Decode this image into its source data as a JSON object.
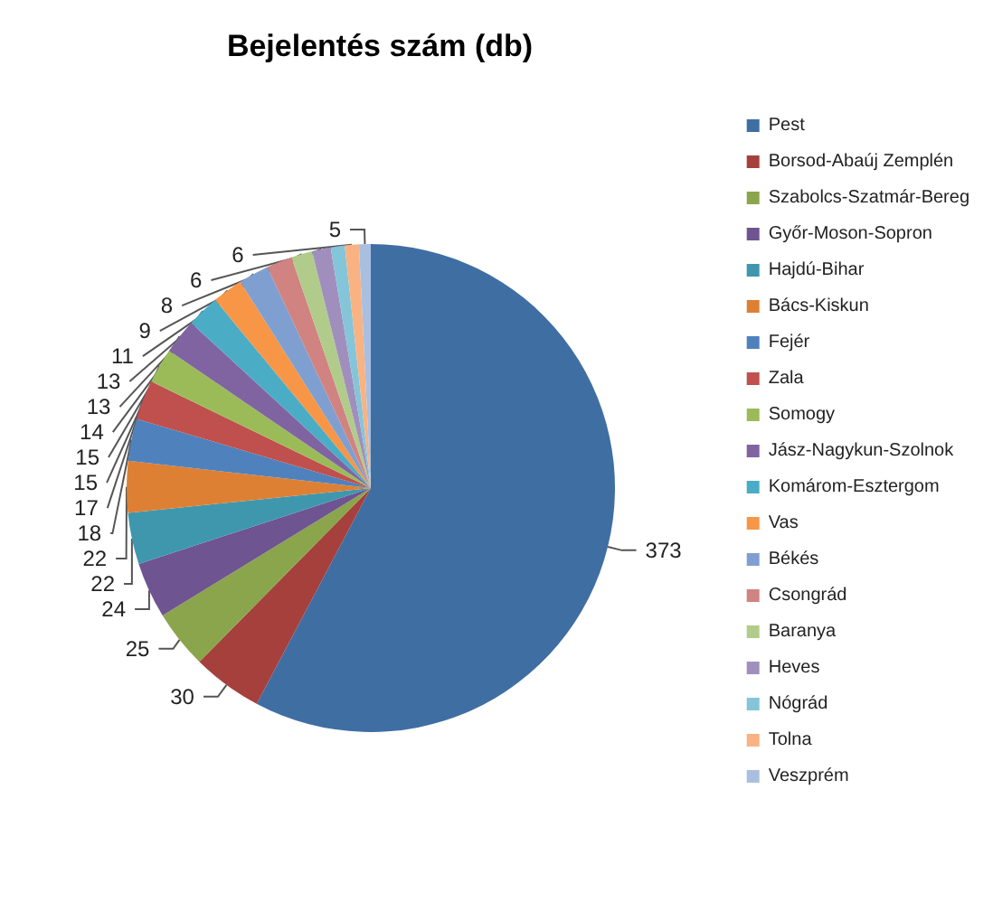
{
  "chart_data": {
    "type": "pie",
    "title": "Bejelentés szám (db)",
    "categories": [
      "Pest",
      "Borsod-Abaúj Zemplén",
      "Szabolcs-Szatmár-Bereg",
      "Győr-Moson-Sopron",
      "Hajdú-Bihar",
      "Bács-Kiskun",
      "Fejér",
      "Zala",
      "Somogy",
      "Jász-Nagykun-Szolnok",
      "Komárom-Esztergom",
      "Vas",
      "Békés",
      "Csongrád",
      "Baranya",
      "Heves",
      "Nógrád",
      "Tolna",
      "Veszprém"
    ],
    "values": [
      373,
      30,
      25,
      24,
      22,
      22,
      18,
      17,
      15,
      15,
      14,
      13,
      13,
      11,
      9,
      8,
      6,
      6,
      5
    ],
    "colors": [
      "#3f6ea3",
      "#a5403d",
      "#8aa54b",
      "#6e5491",
      "#3f97ae",
      "#dd8034",
      "#4f81bd",
      "#c0504d",
      "#9bbb59",
      "#8064a2",
      "#4bacc6",
      "#f79646",
      "#7f9fd0",
      "#d08381",
      "#b1cc8a",
      "#a08fbd",
      "#84c5da",
      "#f9b282",
      "#a9bfe0"
    ],
    "data_labels": true,
    "legend": "right"
  }
}
